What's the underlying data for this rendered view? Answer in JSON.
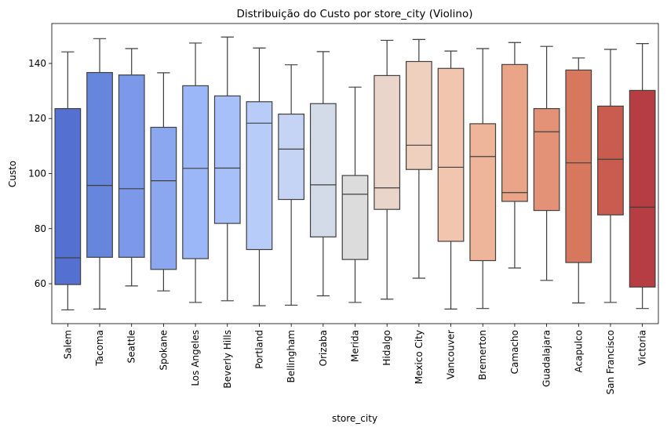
{
  "chart_data": {
    "type": "boxplot",
    "title": "Distribuição do Custo por store_city (Violino)",
    "xlabel": "store_city",
    "ylabel": "Custo",
    "ylim": [
      45.5,
      154.5
    ],
    "yticks": [
      60,
      80,
      100,
      120,
      140
    ],
    "grid": false,
    "categories": [
      "Salem",
      "Tacoma",
      "Seattle",
      "Spokane",
      "Los Angeles",
      "Beverly Hills",
      "Portland",
      "Bellingham",
      "Orizaba",
      "Merida",
      "Hidalgo",
      "Mexico City",
      "Vancouver",
      "Bremerton",
      "Camacho",
      "Guadalajara",
      "Acapulco",
      "San Francisco",
      "Victoria"
    ],
    "boxes": [
      {
        "min": 50.5,
        "q1": 59.7,
        "median": 69.4,
        "q3": 123.6,
        "max": 144.2,
        "color": "#5470d1"
      },
      {
        "min": 50.8,
        "q1": 69.6,
        "median": 95.7,
        "q3": 136.7,
        "max": 149.0,
        "color": "#6685dd"
      },
      {
        "min": 59.2,
        "q1": 69.6,
        "median": 94.5,
        "q3": 135.8,
        "max": 145.4,
        "color": "#7b98e9"
      },
      {
        "min": 57.4,
        "q1": 65.2,
        "median": 97.4,
        "q3": 116.8,
        "max": 136.6,
        "color": "#8ba7ef"
      },
      {
        "min": 53.2,
        "q1": 69.1,
        "median": 101.9,
        "q3": 131.9,
        "max": 147.4,
        "color": "#9bb7f7"
      },
      {
        "min": 53.8,
        "q1": 81.9,
        "median": 102.0,
        "q3": 128.2,
        "max": 149.6,
        "color": "#a8c0fa"
      },
      {
        "min": 52.0,
        "q1": 72.4,
        "median": 118.3,
        "q3": 126.1,
        "max": 145.6,
        "color": "#b8ccf9"
      },
      {
        "min": 52.2,
        "q1": 90.6,
        "median": 108.9,
        "q3": 121.6,
        "max": 139.5,
        "color": "#c5d4f4"
      },
      {
        "min": 55.6,
        "q1": 77.0,
        "median": 95.9,
        "q3": 125.4,
        "max": 144.3,
        "color": "#d3dbe8"
      },
      {
        "min": 53.2,
        "q1": 68.8,
        "median": 92.5,
        "q3": 99.3,
        "max": 131.4,
        "color": "#dcdcdc"
      },
      {
        "min": 54.4,
        "q1": 87.0,
        "median": 94.8,
        "q3": 135.6,
        "max": 148.4,
        "color": "#ead5cb"
      },
      {
        "min": 62.0,
        "q1": 101.5,
        "median": 110.3,
        "q3": 140.7,
        "max": 148.7,
        "color": "#efcfbd"
      },
      {
        "min": 50.8,
        "q1": 75.4,
        "median": 102.3,
        "q3": 138.2,
        "max": 144.5,
        "color": "#f2c5ae"
      },
      {
        "min": 51.0,
        "q1": 68.4,
        "median": 106.2,
        "q3": 118.1,
        "max": 145.4,
        "color": "#efb59a"
      },
      {
        "min": 65.7,
        "q1": 89.9,
        "median": 93.1,
        "q3": 139.6,
        "max": 147.6,
        "color": "#eaa487"
      },
      {
        "min": 61.2,
        "q1": 86.6,
        "median": 115.2,
        "q3": 123.6,
        "max": 146.2,
        "color": "#e39277"
      },
      {
        "min": 53.0,
        "q1": 67.7,
        "median": 103.9,
        "q3": 137.6,
        "max": 142.0,
        "color": "#d6775e"
      },
      {
        "min": 53.2,
        "q1": 85.0,
        "median": 105.2,
        "q3": 124.5,
        "max": 145.1,
        "color": "#c95c4e"
      },
      {
        "min": 51.0,
        "q1": 58.8,
        "median": 87.8,
        "q3": 130.2,
        "max": 147.2,
        "color": "#b63e43"
      }
    ]
  }
}
